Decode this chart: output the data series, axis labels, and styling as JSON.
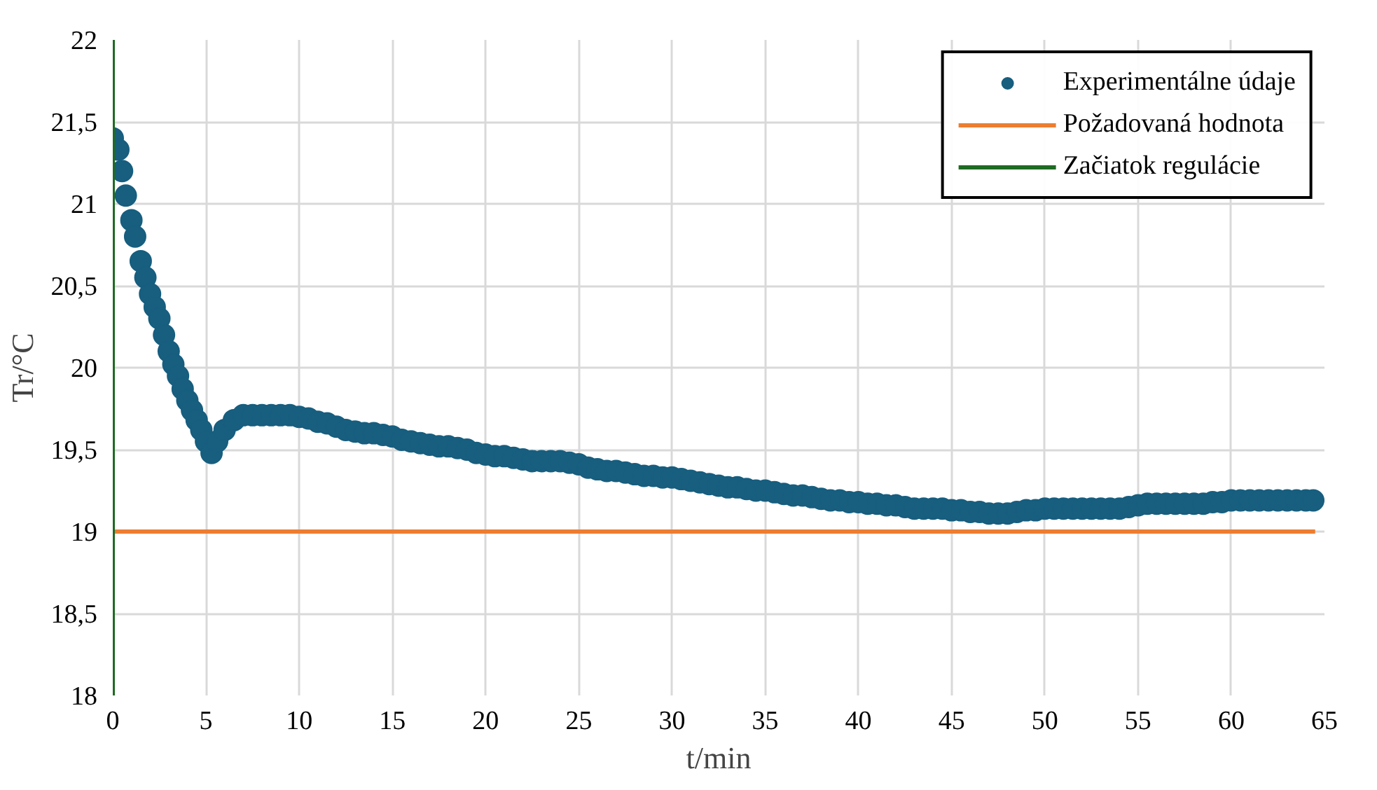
{
  "chart_data": {
    "type": "scatter",
    "xlabel": "t/min",
    "ylabel": "Tr/°C",
    "xlim": [
      0,
      65
    ],
    "xticks": [
      0,
      5,
      10,
      15,
      20,
      25,
      30,
      35,
      40,
      45,
      50,
      55,
      60,
      65
    ],
    "ylim": [
      18,
      22
    ],
    "yticks": [
      18,
      {
        "value": 18.5,
        "label": "18,5"
      },
      19,
      {
        "value": 19.5,
        "label": "19,5"
      },
      20,
      {
        "value": 20.5,
        "label": "20,5"
      },
      21,
      {
        "value": 21.5,
        "label": "21,5"
      },
      22
    ],
    "grid": true,
    "legend": "top right",
    "series": [
      {
        "name": "Experimentálne údaje",
        "color": "#175e7f",
        "marker": "circle",
        "x": [
          0,
          0.3,
          0.5,
          0.7,
          1,
          1.2,
          1.5,
          1.75,
          2,
          2.25,
          2.5,
          2.75,
          3,
          3.25,
          3.5,
          3.75,
          4,
          4.25,
          4.5,
          4.75,
          5,
          5.3,
          5.6,
          6,
          6.5,
          7,
          7.5,
          8,
          8.5,
          9,
          9.5,
          10,
          10.5,
          11,
          11.5,
          12,
          12.5,
          13,
          13.5,
          14,
          14.5,
          15,
          15.5,
          16,
          16.5,
          17,
          17.5,
          18,
          18.5,
          19,
          19.5,
          20,
          20.5,
          21,
          21.5,
          22,
          22.5,
          23,
          23.5,
          24,
          24.5,
          25,
          25.5,
          26,
          26.5,
          27,
          27.5,
          28,
          28.5,
          29,
          29.5,
          30,
          30.5,
          31,
          31.5,
          32,
          32.5,
          33,
          33.5,
          34,
          34.5,
          35,
          35.5,
          36,
          36.5,
          37,
          37.5,
          38,
          38.5,
          39,
          39.5,
          40,
          40.5,
          41,
          41.5,
          42,
          42.5,
          43,
          43.5,
          44,
          44.5,
          45,
          45.5,
          46,
          46.5,
          47,
          47.5,
          48,
          48.5,
          49,
          49.5,
          50,
          50.5,
          51,
          51.5,
          52,
          52.5,
          53,
          53.5,
          54,
          54.5,
          55,
          55.5,
          56,
          56.5,
          57,
          57.5,
          58,
          58.5,
          59,
          59.5,
          60,
          60.5,
          61,
          61.5,
          62,
          62.5,
          63,
          63.5,
          64,
          64.4
        ],
        "values": [
          21.4,
          21.33,
          21.2,
          21.05,
          20.9,
          20.8,
          20.65,
          20.55,
          20.45,
          20.37,
          20.3,
          20.2,
          20.1,
          20.02,
          19.95,
          19.87,
          19.8,
          19.74,
          19.68,
          19.62,
          19.55,
          19.48,
          19.55,
          19.62,
          19.68,
          19.71,
          19.71,
          19.71,
          19.71,
          19.71,
          19.71,
          19.7,
          19.69,
          19.67,
          19.66,
          19.64,
          19.62,
          19.61,
          19.6,
          19.6,
          19.59,
          19.58,
          19.56,
          19.55,
          19.54,
          19.53,
          19.52,
          19.52,
          19.51,
          19.5,
          19.48,
          19.47,
          19.46,
          19.46,
          19.45,
          19.44,
          19.43,
          19.43,
          19.43,
          19.43,
          19.42,
          19.41,
          19.39,
          19.38,
          19.37,
          19.37,
          19.36,
          19.35,
          19.34,
          19.34,
          19.33,
          19.33,
          19.32,
          19.31,
          19.3,
          19.29,
          19.28,
          19.27,
          19.27,
          19.26,
          19.25,
          19.25,
          19.24,
          19.23,
          19.22,
          19.22,
          19.21,
          19.2,
          19.19,
          19.19,
          19.18,
          19.18,
          19.17,
          19.17,
          19.16,
          19.16,
          19.15,
          19.14,
          19.14,
          19.14,
          19.14,
          19.13,
          19.13,
          19.12,
          19.12,
          19.11,
          19.11,
          19.11,
          19.12,
          19.13,
          19.13,
          19.14,
          19.14,
          19.14,
          19.14,
          19.14,
          19.14,
          19.14,
          19.14,
          19.14,
          19.15,
          19.16,
          19.17,
          19.17,
          19.17,
          19.17,
          19.17,
          19.17,
          19.17,
          19.18,
          19.18,
          19.19,
          19.19,
          19.19,
          19.19,
          19.19,
          19.19,
          19.19,
          19.19,
          19.19,
          19.19
        ]
      },
      {
        "name": "Požadovaná hodnota",
        "color": "#ed7d31",
        "type": "line",
        "marker": "none",
        "x": [
          0,
          64.5
        ],
        "values": [
          19,
          19
        ]
      },
      {
        "name": "Začiatok regulácie",
        "color": "#1e6b22",
        "type": "line",
        "marker": "none",
        "x": [
          0,
          0
        ],
        "values": [
          18,
          22
        ]
      }
    ]
  }
}
